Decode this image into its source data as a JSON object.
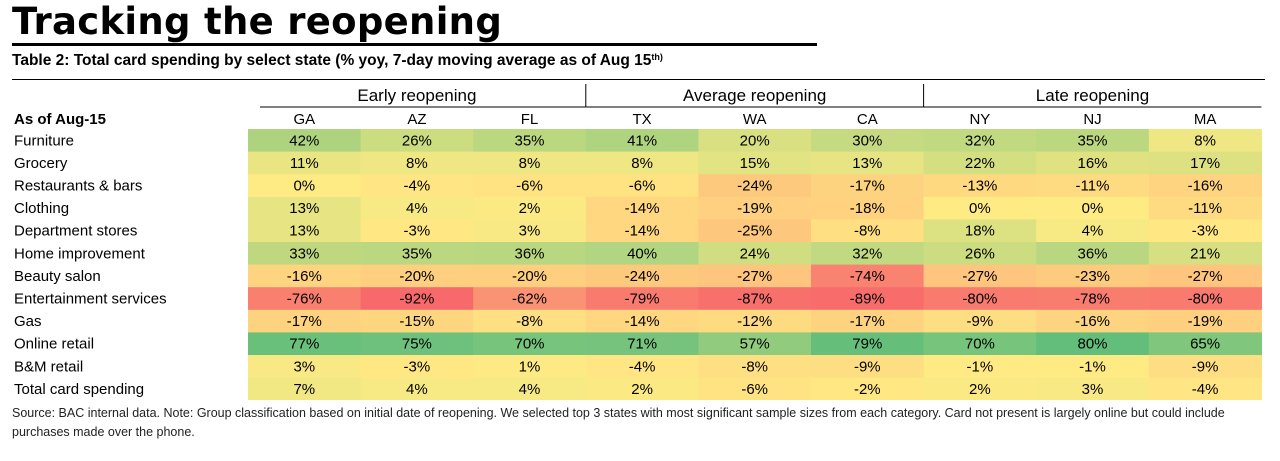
{
  "header": {
    "title": "Tracking the reopening",
    "subtitle": "Table 2: Total card spending by select state (% yoy, 7-day moving average as of Aug 15",
    "subtitle_sup": "th)"
  },
  "chart_data": {
    "type": "heatmap",
    "corner_label": "As of Aug-15",
    "groups": [
      {
        "name": "Early reopening",
        "columns": [
          "GA",
          "AZ",
          "FL"
        ]
      },
      {
        "name": "Average reopening",
        "columns": [
          "TX",
          "WA",
          "CA"
        ]
      },
      {
        "name": "Late reopening",
        "columns": [
          "NY",
          "NJ",
          "MA"
        ]
      }
    ],
    "columns": [
      "GA",
      "AZ",
      "FL",
      "TX",
      "WA",
      "CA",
      "NY",
      "NJ",
      "MA"
    ],
    "rows": [
      {
        "label": "Furniture",
        "values": [
          42,
          26,
          35,
          41,
          20,
          30,
          32,
          35,
          8
        ]
      },
      {
        "label": "Grocery",
        "values": [
          11,
          8,
          8,
          8,
          15,
          13,
          22,
          16,
          17
        ]
      },
      {
        "label": "Restaurants & bars",
        "values": [
          0,
          -4,
          -6,
          -6,
          -24,
          -17,
          -13,
          -11,
          -16
        ]
      },
      {
        "label": "Clothing",
        "values": [
          13,
          4,
          2,
          -14,
          -19,
          -18,
          0,
          0,
          -11
        ]
      },
      {
        "label": "Department stores",
        "values": [
          13,
          -3,
          3,
          -14,
          -25,
          -8,
          18,
          4,
          -3
        ]
      },
      {
        "label": "Home improvement",
        "values": [
          33,
          35,
          36,
          40,
          24,
          32,
          26,
          36,
          21
        ]
      },
      {
        "label": "Beauty salon",
        "values": [
          -16,
          -20,
          -20,
          -24,
          -27,
          -74,
          -27,
          -23,
          -27
        ]
      },
      {
        "label": "Entertainment services",
        "values": [
          -76,
          -92,
          -62,
          -79,
          -87,
          -89,
          -80,
          -78,
          -80
        ]
      },
      {
        "label": "Gas",
        "values": [
          -17,
          -15,
          -8,
          -14,
          -12,
          -17,
          -9,
          -16,
          -19
        ]
      },
      {
        "label": "Online retail",
        "values": [
          77,
          75,
          70,
          71,
          57,
          79,
          70,
          80,
          65
        ]
      },
      {
        "label": "B&M retail",
        "values": [
          3,
          -3,
          1,
          -4,
          -8,
          -9,
          -1,
          -1,
          -9
        ]
      },
      {
        "label": "Total card spending",
        "values": [
          7,
          4,
          4,
          2,
          -6,
          -2,
          2,
          3,
          -4
        ]
      }
    ],
    "value_suffix": "%",
    "colors": {
      "low": "#f8696b",
      "mid": "#ffeb84",
      "high": "#63be7b"
    }
  },
  "source": {
    "text": "Source: BAC internal data. Note: Group classification based on initial date of reopening. We selected top 3 states with most significant sample sizes from each category. Card not present is largely online but could include purchases made over the phone."
  }
}
